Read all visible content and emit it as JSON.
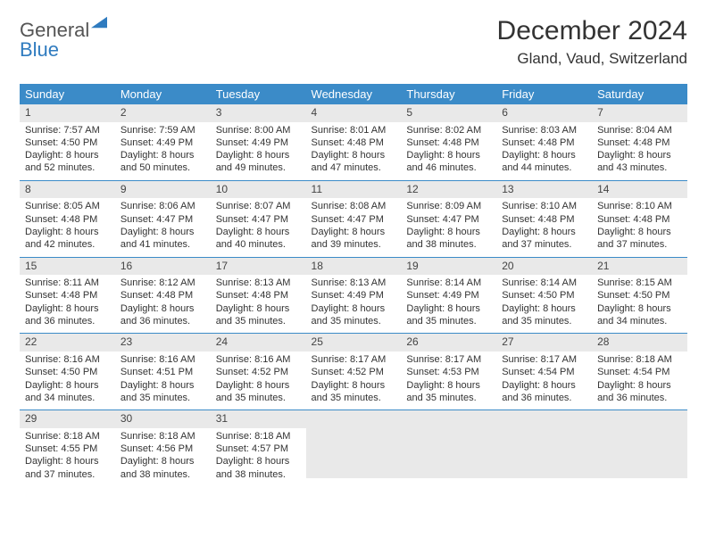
{
  "logo": {
    "text1": "General",
    "text2": "Blue"
  },
  "title": {
    "month": "December 2024",
    "location": "Gland, Vaud, Switzerland"
  },
  "calendar": {
    "header_bg": "#3b8bc8",
    "header_fg": "#ffffff",
    "border_color": "#3b8bc8",
    "daynum_bg": "#e9e9e9",
    "days": [
      "Sunday",
      "Monday",
      "Tuesday",
      "Wednesday",
      "Thursday",
      "Friday",
      "Saturday"
    ],
    "cells": [
      {
        "n": "1",
        "sr": "Sunrise: 7:57 AM",
        "ss": "Sunset: 4:50 PM",
        "dl": "Daylight: 8 hours and 52 minutes."
      },
      {
        "n": "2",
        "sr": "Sunrise: 7:59 AM",
        "ss": "Sunset: 4:49 PM",
        "dl": "Daylight: 8 hours and 50 minutes."
      },
      {
        "n": "3",
        "sr": "Sunrise: 8:00 AM",
        "ss": "Sunset: 4:49 PM",
        "dl": "Daylight: 8 hours and 49 minutes."
      },
      {
        "n": "4",
        "sr": "Sunrise: 8:01 AM",
        "ss": "Sunset: 4:48 PM",
        "dl": "Daylight: 8 hours and 47 minutes."
      },
      {
        "n": "5",
        "sr": "Sunrise: 8:02 AM",
        "ss": "Sunset: 4:48 PM",
        "dl": "Daylight: 8 hours and 46 minutes."
      },
      {
        "n": "6",
        "sr": "Sunrise: 8:03 AM",
        "ss": "Sunset: 4:48 PM",
        "dl": "Daylight: 8 hours and 44 minutes."
      },
      {
        "n": "7",
        "sr": "Sunrise: 8:04 AM",
        "ss": "Sunset: 4:48 PM",
        "dl": "Daylight: 8 hours and 43 minutes."
      },
      {
        "n": "8",
        "sr": "Sunrise: 8:05 AM",
        "ss": "Sunset: 4:48 PM",
        "dl": "Daylight: 8 hours and 42 minutes."
      },
      {
        "n": "9",
        "sr": "Sunrise: 8:06 AM",
        "ss": "Sunset: 4:47 PM",
        "dl": "Daylight: 8 hours and 41 minutes."
      },
      {
        "n": "10",
        "sr": "Sunrise: 8:07 AM",
        "ss": "Sunset: 4:47 PM",
        "dl": "Daylight: 8 hours and 40 minutes."
      },
      {
        "n": "11",
        "sr": "Sunrise: 8:08 AM",
        "ss": "Sunset: 4:47 PM",
        "dl": "Daylight: 8 hours and 39 minutes."
      },
      {
        "n": "12",
        "sr": "Sunrise: 8:09 AM",
        "ss": "Sunset: 4:47 PM",
        "dl": "Daylight: 8 hours and 38 minutes."
      },
      {
        "n": "13",
        "sr": "Sunrise: 8:10 AM",
        "ss": "Sunset: 4:48 PM",
        "dl": "Daylight: 8 hours and 37 minutes."
      },
      {
        "n": "14",
        "sr": "Sunrise: 8:10 AM",
        "ss": "Sunset: 4:48 PM",
        "dl": "Daylight: 8 hours and 37 minutes."
      },
      {
        "n": "15",
        "sr": "Sunrise: 8:11 AM",
        "ss": "Sunset: 4:48 PM",
        "dl": "Daylight: 8 hours and 36 minutes."
      },
      {
        "n": "16",
        "sr": "Sunrise: 8:12 AM",
        "ss": "Sunset: 4:48 PM",
        "dl": "Daylight: 8 hours and 36 minutes."
      },
      {
        "n": "17",
        "sr": "Sunrise: 8:13 AM",
        "ss": "Sunset: 4:48 PM",
        "dl": "Daylight: 8 hours and 35 minutes."
      },
      {
        "n": "18",
        "sr": "Sunrise: 8:13 AM",
        "ss": "Sunset: 4:49 PM",
        "dl": "Daylight: 8 hours and 35 minutes."
      },
      {
        "n": "19",
        "sr": "Sunrise: 8:14 AM",
        "ss": "Sunset: 4:49 PM",
        "dl": "Daylight: 8 hours and 35 minutes."
      },
      {
        "n": "20",
        "sr": "Sunrise: 8:14 AM",
        "ss": "Sunset: 4:50 PM",
        "dl": "Daylight: 8 hours and 35 minutes."
      },
      {
        "n": "21",
        "sr": "Sunrise: 8:15 AM",
        "ss": "Sunset: 4:50 PM",
        "dl": "Daylight: 8 hours and 34 minutes."
      },
      {
        "n": "22",
        "sr": "Sunrise: 8:16 AM",
        "ss": "Sunset: 4:50 PM",
        "dl": "Daylight: 8 hours and 34 minutes."
      },
      {
        "n": "23",
        "sr": "Sunrise: 8:16 AM",
        "ss": "Sunset: 4:51 PM",
        "dl": "Daylight: 8 hours and 35 minutes."
      },
      {
        "n": "24",
        "sr": "Sunrise: 8:16 AM",
        "ss": "Sunset: 4:52 PM",
        "dl": "Daylight: 8 hours and 35 minutes."
      },
      {
        "n": "25",
        "sr": "Sunrise: 8:17 AM",
        "ss": "Sunset: 4:52 PM",
        "dl": "Daylight: 8 hours and 35 minutes."
      },
      {
        "n": "26",
        "sr": "Sunrise: 8:17 AM",
        "ss": "Sunset: 4:53 PM",
        "dl": "Daylight: 8 hours and 35 minutes."
      },
      {
        "n": "27",
        "sr": "Sunrise: 8:17 AM",
        "ss": "Sunset: 4:54 PM",
        "dl": "Daylight: 8 hours and 36 minutes."
      },
      {
        "n": "28",
        "sr": "Sunrise: 8:18 AM",
        "ss": "Sunset: 4:54 PM",
        "dl": "Daylight: 8 hours and 36 minutes."
      },
      {
        "n": "29",
        "sr": "Sunrise: 8:18 AM",
        "ss": "Sunset: 4:55 PM",
        "dl": "Daylight: 8 hours and 37 minutes."
      },
      {
        "n": "30",
        "sr": "Sunrise: 8:18 AM",
        "ss": "Sunset: 4:56 PM",
        "dl": "Daylight: 8 hours and 38 minutes."
      },
      {
        "n": "31",
        "sr": "Sunrise: 8:18 AM",
        "ss": "Sunset: 4:57 PM",
        "dl": "Daylight: 8 hours and 38 minutes."
      }
    ]
  }
}
